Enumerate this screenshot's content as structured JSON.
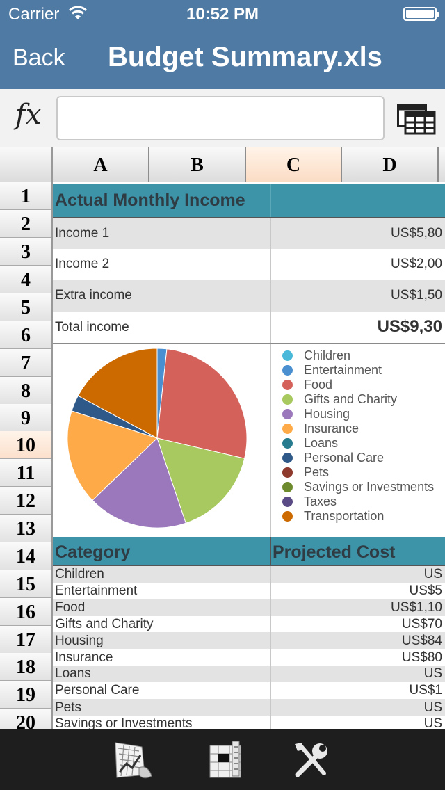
{
  "status": {
    "carrier": "Carrier",
    "time": "10:52 PM"
  },
  "nav": {
    "back_label": "Back",
    "title": "Budget Summary.xls"
  },
  "formula": {
    "fx_label": "fx",
    "value": ""
  },
  "columns": [
    "A",
    "B",
    "C",
    "D"
  ],
  "selected_column": "C",
  "rows": [
    "1",
    "2",
    "3",
    "4",
    "5",
    "6",
    "7",
    "8",
    "9",
    "10",
    "11",
    "12",
    "13",
    "14",
    "15",
    "16",
    "17",
    "18",
    "19",
    "20"
  ],
  "selected_row": "10",
  "income": {
    "header": "Actual Monthly Income",
    "items": [
      {
        "label": "Income 1",
        "value": "US$5,80"
      },
      {
        "label": "Income 2",
        "value": "US$2,00"
      },
      {
        "label": "Extra income",
        "value": "US$1,50"
      }
    ],
    "total_label": "Total income",
    "total_value": "US$9,30"
  },
  "chart_data": {
    "type": "pie",
    "categories": [
      "Children",
      "Entertainment",
      "Food",
      "Gifts and Charity",
      "Housing",
      "Insurance",
      "Loans",
      "Personal Care",
      "Pets",
      "Savings or Investments",
      "Taxes",
      "Transportation"
    ],
    "values": [
      0,
      1.9,
      29.6,
      17.8,
      19.8,
      18.8,
      0,
      3.2,
      0,
      0,
      0,
      18.9
    ],
    "colors": [
      "#4ab8d8",
      "#4a8fd0",
      "#d4625b",
      "#a8c95f",
      "#9a78bb",
      "#ffaa48",
      "#267c8e",
      "#2f5988",
      "#8e3a2d",
      "#6d8a2c",
      "#5a4a85",
      "#cc6a00"
    ],
    "legend_position": "right"
  },
  "costs": {
    "header_category": "Category",
    "header_projected": "Projected Cost",
    "rows": [
      {
        "category": "Children",
        "projected": "US"
      },
      {
        "category": "Entertainment",
        "projected": "US$5"
      },
      {
        "category": "Food",
        "projected": "US$1,10"
      },
      {
        "category": "Gifts and Charity",
        "projected": "US$70"
      },
      {
        "category": "Housing",
        "projected": "US$84"
      },
      {
        "category": "Insurance",
        "projected": "US$80"
      },
      {
        "category": "Loans",
        "projected": "US"
      },
      {
        "category": "Personal Care",
        "projected": "US$1"
      },
      {
        "category": "Pets",
        "projected": "US"
      },
      {
        "category": "Savings or Investments",
        "projected": "US"
      }
    ]
  },
  "toolbar": {
    "icons": [
      "chart-edit-icon",
      "cell-format-icon",
      "tools-icon"
    ]
  },
  "colors": {
    "nav": "#4f7aa3",
    "header_band": "#3d93a8",
    "toolbar": "#1e1e1e",
    "selection": "#fbdcc4"
  }
}
